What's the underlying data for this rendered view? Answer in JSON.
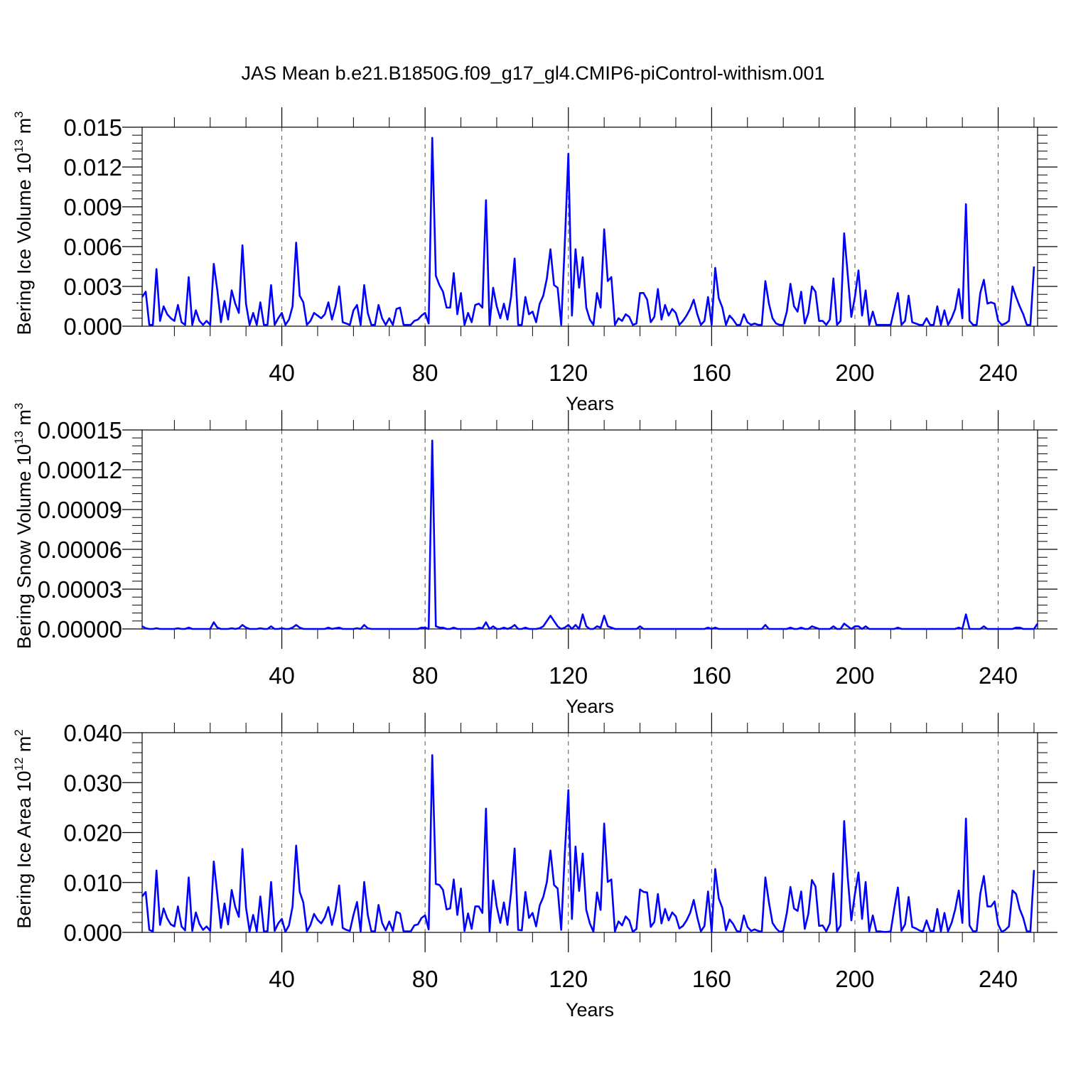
{
  "figure": {
    "title": "JAS Mean b.e21.B1850G.f09_g17_gl4.CMIP6-piControl-withism.001"
  },
  "chart_data": [
    {
      "type": "line",
      "ylabel": "Bering Ice Volume 10",
      "ylabel_exp": "13",
      "ylabel_unit": " m",
      "ylabel_unit_exp": "3",
      "xlabel": "Years",
      "xlim": [
        1,
        251
      ],
      "xticks": [
        "40",
        "80",
        "120",
        "160",
        "200",
        "240"
      ],
      "ylim": [
        0,
        0.015
      ],
      "yticks": [
        "0.000",
        "0.003",
        "0.006",
        "0.009",
        "0.012",
        "0.015"
      ],
      "color": "#0000ff",
      "grid": "dashed vertical",
      "series": [
        {
          "values": [
            0.0022,
            0.0026,
            0.0001,
            0.0001,
            0.0043,
            0.0004,
            0.0015,
            0.0009,
            0.0006,
            0.0004,
            0.0016,
            0.0003,
            0.0001,
            0.0037,
            0.0001,
            0.0012,
            0.0004,
            0.0001,
            0.0004,
            0.0001,
            0.0047,
            0.0027,
            0.0003,
            0.0019,
            0.0005,
            0.0027,
            0.0017,
            0.001,
            0.0061,
            0.0017,
            0.0001,
            0.001,
            0.0001,
            0.0018,
            0.0001,
            0.0001,
            0.0031,
            0.0001,
            0.0006,
            0.001,
            0.0001,
            0.0005,
            0.0015,
            0.0063,
            0.0023,
            0.0018,
            0.0001,
            0.0004,
            0.001,
            0.0008,
            0.0006,
            0.0009,
            0.0018,
            0.0005,
            0.0015,
            0.003,
            0.0003,
            0.0002,
            0.0001,
            0.0012,
            0.0016,
            0.0001,
            0.0031,
            0.001,
            0.0001,
            0.0001,
            0.0016,
            0.0006,
            0.0001,
            0.0006,
            0.0001,
            0.0013,
            0.0014,
            0.0001,
            0.0001,
            0.0001,
            0.0004,
            0.0005,
            0.0008,
            0.001,
            0.0002,
            0.0142,
            0.0038,
            0.0031,
            0.0026,
            0.0014,
            0.0014,
            0.004,
            0.0009,
            0.0025,
            0.0001,
            0.001,
            0.0003,
            0.0016,
            0.0017,
            0.0014,
            0.0095,
            0.0001,
            0.0029,
            0.0015,
            0.0006,
            0.0017,
            0.0005,
            0.0022,
            0.0051,
            0.0001,
            0.0001,
            0.0022,
            0.0009,
            0.0011,
            0.0003,
            0.0017,
            0.0023,
            0.0036,
            0.0058,
            0.0031,
            0.0029,
            0.0001,
            0.0062,
            0.013,
            0.0008,
            0.0058,
            0.0029,
            0.0052,
            0.0014,
            0.0005,
            0.0001,
            0.0025,
            0.0014,
            0.0073,
            0.0034,
            0.0037,
            0.0001,
            0.0006,
            0.0004,
            0.0009,
            0.0007,
            0.0001,
            0.0002,
            0.0025,
            0.0025,
            0.002,
            0.0003,
            0.0007,
            0.0028,
            0.0005,
            0.0016,
            0.0008,
            0.0013,
            0.001,
            0.0001,
            0.0004,
            0.0008,
            0.0013,
            0.002,
            0.0009,
            0.0001,
            0.0004,
            0.0022,
            0.0001,
            0.0044,
            0.0021,
            0.0014,
            0.0001,
            0.0008,
            0.0005,
            0.0001,
            0.0001,
            0.0009,
            0.0003,
            0.0001,
            0.0002,
            0.0001,
            0.0001,
            0.0034,
            0.0017,
            0.0006,
            0.0002,
            0.0001,
            0.0001,
            0.0011,
            0.0032,
            0.0015,
            0.0011,
            0.0026,
            0.0002,
            0.001,
            0.003,
            0.0026,
            0.0004,
            0.0004,
            0.0001,
            0.0005,
            0.0036,
            0.0001,
            0.0004,
            0.007,
            0.0039,
            0.0007,
            0.0022,
            0.0042,
            0.0008,
            0.0027,
            0.0001,
            0.0011,
            0.0001,
            0.0001,
            0.0001,
            0.0001,
            0.0001,
            0.0013,
            0.0025,
            0.0001,
            0.0004,
            0.0023,
            0.0003,
            0.0002,
            0.0001,
            0.0001,
            0.0006,
            0.0001,
            0.0001,
            0.0015,
            0.0001,
            0.0012,
            0.0001,
            0.0006,
            0.0013,
            0.0028,
            0.0006,
            0.0092,
            0.0004,
            0.0001,
            0.0001,
            0.0025,
            0.0035,
            0.0017,
            0.0018,
            0.0017,
            0.0004,
            0.0001,
            0.0002,
            0.0004,
            0.003,
            0.0022,
            0.0015,
            0.0009,
            0.0001,
            0.0001,
            0.0045
          ]
        }
      ]
    },
    {
      "type": "line",
      "ylabel": "Bering Snow Volume 10",
      "ylabel_exp": "13",
      "ylabel_unit": " m",
      "ylabel_unit_exp": "3",
      "xlabel": "Years",
      "xlim": [
        1,
        251
      ],
      "xticks": [
        "40",
        "80",
        "120",
        "160",
        "200",
        "240"
      ],
      "ylim": [
        0,
        0.00015
      ],
      "yticks": [
        "0.00000",
        "0.00003",
        "0.00006",
        "0.00009",
        "0.00012",
        "0.00015"
      ],
      "color": "#0000ff",
      "grid": "dashed vertical",
      "series": [
        {
          "values": [
            2e-06,
            5e-07,
            0,
            0,
            5e-07,
            0,
            0,
            0,
            0,
            0,
            5e-07,
            0,
            0,
            1e-06,
            0,
            0,
            0,
            0,
            0,
            0,
            5e-06,
            1e-06,
            0,
            0,
            0,
            5e-07,
            0,
            5e-07,
            3e-06,
            1e-06,
            0,
            0,
            0,
            5e-07,
            0,
            0,
            2e-06,
            0,
            0,
            5e-07,
            0,
            0,
            1e-06,
            3e-06,
            1e-06,
            0,
            0,
            0,
            0,
            0,
            0,
            0,
            1e-06,
            0,
            5e-07,
            1e-06,
            0,
            0,
            0,
            0,
            5e-07,
            0,
            3e-06,
            5e-07,
            0,
            0,
            0,
            0,
            0,
            0,
            0,
            0,
            0,
            0,
            0,
            0,
            0,
            0,
            1e-06,
            1e-06,
            0,
            0.000142,
            2e-06,
            1e-06,
            1e-06,
            0,
            0,
            1e-06,
            0,
            0,
            0,
            0,
            0,
            0,
            1e-06,
            5e-07,
            5e-06,
            0,
            2e-06,
            0,
            0,
            1e-06,
            0,
            1e-06,
            3e-06,
            0,
            0,
            1e-06,
            0,
            0,
            0,
            5e-07,
            2e-06,
            6e-06,
            1e-05,
            6e-06,
            2e-06,
            0,
            1e-06,
            3e-06,
            0,
            3e-06,
            0,
            1.1e-05,
            2e-06,
            0,
            0,
            2e-06,
            1e-06,
            1e-05,
            2e-06,
            1e-06,
            0,
            0,
            0,
            0,
            0,
            0,
            0,
            2e-06,
            0,
            0,
            0,
            0,
            0,
            0,
            0,
            0,
            0,
            0,
            0,
            0,
            0,
            0,
            0,
            0,
            0,
            0,
            1e-06,
            0,
            1e-06,
            0,
            0,
            0,
            0,
            0,
            0,
            0,
            0,
            0,
            0,
            0,
            0,
            0,
            3e-06,
            0,
            0,
            0,
            0,
            0,
            0,
            1e-06,
            0,
            0,
            1e-06,
            0,
            0,
            2e-06,
            1e-06,
            0,
            0,
            0,
            0,
            2e-06,
            0,
            0,
            4e-06,
            2e-06,
            0,
            2e-06,
            2e-06,
            0,
            2e-06,
            0,
            0,
            0,
            0,
            0,
            0,
            0,
            0,
            1e-06,
            0,
            0,
            0,
            0,
            0,
            0,
            0,
            0,
            0,
            0,
            0,
            0,
            0,
            0,
            0,
            0,
            1e-06,
            0,
            1.1e-05,
            0,
            0,
            0,
            0,
            2e-06,
            0,
            0,
            0,
            0,
            0,
            0,
            0,
            0,
            1e-06,
            1e-06,
            0,
            0,
            0,
            0,
            4e-06
          ]
        }
      ]
    },
    {
      "type": "line",
      "ylabel": "Bering Ice Area 10",
      "ylabel_exp": "12",
      "ylabel_unit": " m",
      "ylabel_unit_exp": "2",
      "xlabel": "Years",
      "xlim": [
        1,
        251
      ],
      "xticks": [
        "40",
        "80",
        "120",
        "160",
        "200",
        "240"
      ],
      "ylim": [
        0,
        0.04
      ],
      "yticks": [
        "0.000",
        "0.010",
        "0.020",
        "0.030",
        "0.040"
      ],
      "color": "#0000ff",
      "grid": "dashed vertical",
      "series": [
        {
          "values": [
            0.0072,
            0.0081,
            0.0005,
            0.0002,
            0.0124,
            0.0015,
            0.0048,
            0.0028,
            0.0016,
            0.0012,
            0.0052,
            0.0012,
            0.0004,
            0.011,
            0.0003,
            0.004,
            0.0017,
            0.0005,
            0.0012,
            0.0003,
            0.0142,
            0.0075,
            0.0009,
            0.0058,
            0.0016,
            0.0085,
            0.0051,
            0.0031,
            0.0167,
            0.005,
            0.0002,
            0.0035,
            0.0002,
            0.0072,
            0.0002,
            0.0002,
            0.0101,
            0.0003,
            0.0018,
            0.0027,
            0.0001,
            0.0014,
            0.0052,
            0.0174,
            0.0081,
            0.006,
            0.0002,
            0.0015,
            0.0037,
            0.0025,
            0.0018,
            0.003,
            0.0051,
            0.0015,
            0.0045,
            0.0094,
            0.0009,
            0.0005,
            0.0003,
            0.0035,
            0.0061,
            0.0002,
            0.0101,
            0.0035,
            0.0002,
            0.0002,
            0.0055,
            0.0019,
            0.0004,
            0.0022,
            0.0003,
            0.0041,
            0.0038,
            0.0002,
            0.0002,
            0.0002,
            0.0014,
            0.0016,
            0.0029,
            0.0034,
            0.0006,
            0.0355,
            0.0097,
            0.0095,
            0.0085,
            0.0046,
            0.0048,
            0.0106,
            0.0035,
            0.0088,
            0.0003,
            0.0038,
            0.0007,
            0.0052,
            0.0052,
            0.0039,
            0.0248,
            0.0002,
            0.0104,
            0.0052,
            0.0019,
            0.006,
            0.0015,
            0.008,
            0.0168,
            0.0005,
            0.0004,
            0.0081,
            0.0029,
            0.0039,
            0.0012,
            0.0054,
            0.0071,
            0.0101,
            0.0164,
            0.0095,
            0.0088,
            0.0005,
            0.0158,
            0.0285,
            0.0027,
            0.0172,
            0.0083,
            0.0158,
            0.0045,
            0.0018,
            0.0001,
            0.008,
            0.0045,
            0.0218,
            0.0101,
            0.0106,
            0.0002,
            0.0022,
            0.0014,
            0.0032,
            0.0024,
            0.0001,
            0.0007,
            0.0086,
            0.0081,
            0.008,
            0.0011,
            0.0021,
            0.0077,
            0.0018,
            0.0047,
            0.0024,
            0.004,
            0.0032,
            0.0008,
            0.0013,
            0.0024,
            0.0039,
            0.0065,
            0.003,
            0.0002,
            0.0013,
            0.0082,
            0.0001,
            0.0127,
            0.0068,
            0.0049,
            0.0004,
            0.0026,
            0.0017,
            0.0003,
            0.0001,
            0.0034,
            0.0011,
            0.0003,
            0.0006,
            0.0003,
            0.0001,
            0.011,
            0.006,
            0.0019,
            0.0008,
            0.0001,
            0.0003,
            0.0039,
            0.0091,
            0.0048,
            0.0043,
            0.0082,
            0.0007,
            0.0037,
            0.0105,
            0.0092,
            0.0013,
            0.0014,
            0.0002,
            0.0018,
            0.0118,
            0.0002,
            0.0014,
            0.0223,
            0.011,
            0.0024,
            0.0077,
            0.012,
            0.0027,
            0.0101,
            0.0002,
            0.0034,
            0.0002,
            0.0002,
            0.0001,
            0.0001,
            0.0002,
            0.0048,
            0.009,
            0.0003,
            0.0016,
            0.0071,
            0.0011,
            0.0008,
            0.0004,
            0.0002,
            0.0024,
            0.0003,
            0.0003,
            0.0047,
            0.0002,
            0.0039,
            0.0002,
            0.0019,
            0.0046,
            0.0084,
            0.0019,
            0.0228,
            0.0014,
            0.0002,
            0.0003,
            0.0077,
            0.0113,
            0.0052,
            0.0052,
            0.0062,
            0.0016,
            0.0001,
            0.0005,
            0.0012,
            0.0084,
            0.0077,
            0.0047,
            0.0029,
            0.0002,
            0.0002,
            0.0125
          ]
        }
      ]
    }
  ]
}
